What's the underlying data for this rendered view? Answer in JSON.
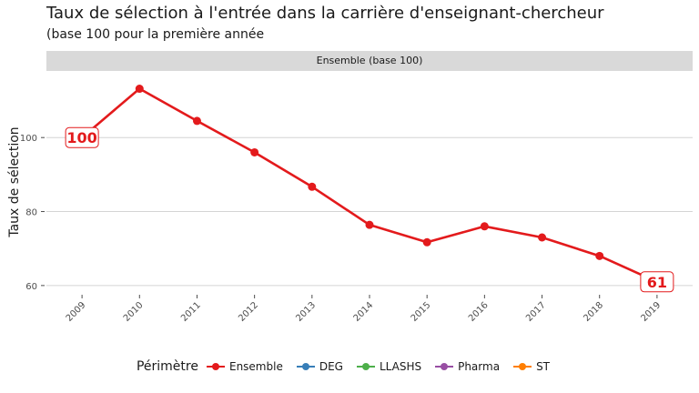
{
  "title": "Taux de sélection à l'entrée dans la carrière d'enseignant-chercheur",
  "subtitle": "(base 100 pour la première année",
  "facet": "Ensemble (base 100)",
  "chart_data": {
    "type": "line",
    "ylabel": "Taux de sélection",
    "xlabel": "",
    "ylim": [
      58,
      118
    ],
    "yticks": [
      60,
      80,
      100
    ],
    "x": [
      "2009",
      "2010",
      "2011",
      "2012",
      "2013",
      "2014",
      "2015",
      "2016",
      "2017",
      "2018",
      "2019"
    ],
    "series": [
      {
        "name": "Ensemble",
        "color": "#e31a1c",
        "values": [
          100,
          113.2,
          104.5,
          96.0,
          86.7,
          76.4,
          71.7,
          76.0,
          73.0,
          68.0,
          61
        ]
      }
    ],
    "annotations": [
      {
        "x": "2009",
        "y": 100,
        "text": "100"
      },
      {
        "x": "2019",
        "y": 61,
        "text": "61"
      }
    ],
    "grid": true
  },
  "legend": {
    "title": "Périmètre",
    "position": "bottom",
    "items": [
      {
        "label": "Ensemble",
        "color": "#e31a1c"
      },
      {
        "label": "DEG",
        "color": "#377eb8"
      },
      {
        "label": "LLASHS",
        "color": "#4daf4a"
      },
      {
        "label": "Pharma",
        "color": "#984ea3"
      },
      {
        "label": "ST",
        "color": "#ff7f00"
      }
    ]
  }
}
